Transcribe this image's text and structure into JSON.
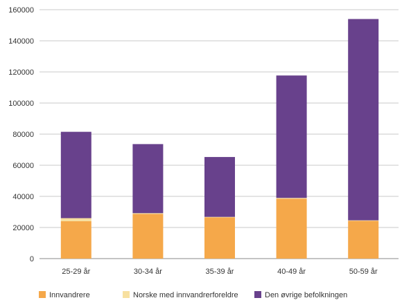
{
  "chart_data": {
    "type": "bar",
    "stacked": true,
    "categories": [
      "25-29 år",
      "30-34 år",
      "35-39 år",
      "40-49 år",
      "50-59 år"
    ],
    "series": [
      {
        "name": "Innvandrere",
        "color": "#F5A84A",
        "values": [
          24000,
          28700,
          26500,
          38500,
          24300
        ]
      },
      {
        "name": "Norske med innvandrerforeldre",
        "color": "#F7E0A0",
        "values": [
          2000,
          500,
          300,
          500,
          300
        ]
      },
      {
        "name": "Den øvrige befolkningen",
        "color": "#68418C",
        "values": [
          55500,
          44400,
          38500,
          78700,
          129400
        ]
      }
    ],
    "yticks": [
      "0",
      "20000",
      "40000",
      "60000",
      "80000",
      "100000",
      "120000",
      "140000",
      "160000"
    ],
    "ylim": [
      0,
      160000
    ],
    "grid": true,
    "legend_position": "bottom"
  }
}
